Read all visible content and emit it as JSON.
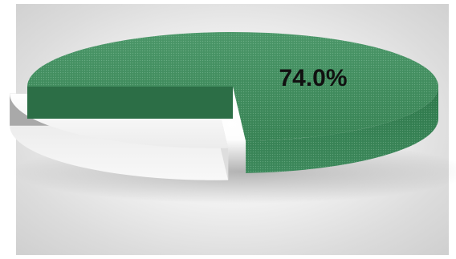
{
  "chart_data": {
    "type": "pie",
    "style": "3d-exploded",
    "slices": [
      {
        "value": 74.0,
        "color": "#3d8a5c",
        "label": "74.0%"
      },
      {
        "value": 26.0,
        "color": "#f2f2f2",
        "label": ""
      }
    ],
    "title": "",
    "legend": "none"
  }
}
